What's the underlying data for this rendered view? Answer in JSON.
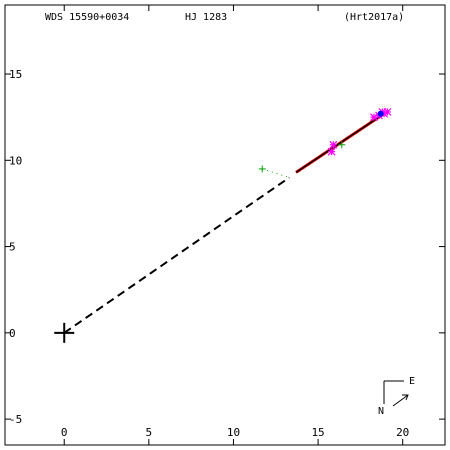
{
  "header": {
    "wds_id": "WDS 15590+0034",
    "discoverer": "HJ 1283",
    "orbit_ref": "(Hrt2017a)"
  },
  "compass": {
    "east_label": "E",
    "north_label": "N"
  },
  "colors": {
    "axes": "#000000",
    "orbit": "#000000",
    "residual": "#ff0000",
    "obs_green": "#00a000",
    "obs_magenta": "#ff00ff",
    "obs_blue": "#0000ff"
  },
  "chart_data": {
    "type": "scatter",
    "title": "",
    "xlabel": "",
    "ylabel": "",
    "xlim": [
      -3.5,
      22.5
    ],
    "ylim": [
      -6.5,
      19.0
    ],
    "xticks": [
      0,
      5,
      10,
      15,
      20
    ],
    "yticks": [
      -5,
      0,
      5,
      10,
      15
    ],
    "xtick_labels": [
      "0",
      "5",
      "10",
      "15",
      "20"
    ],
    "ytick_labels": [
      "-5",
      "0",
      "5",
      "10",
      "15"
    ],
    "grid": false,
    "primary_star": {
      "x": 0,
      "y": 0
    },
    "orbit_line": {
      "x": [
        13.7,
        18.9
      ],
      "y": [
        9.3,
        12.7
      ]
    },
    "extrapolated_line": {
      "x": [
        0,
        13.3
      ],
      "y": [
        0,
        9.0
      ]
    },
    "series": [
      {
        "marker": "plus",
        "color": "green",
        "x": [
          11.7,
          16.4
        ],
        "y": [
          9.5,
          10.9
        ]
      },
      {
        "marker": "asterisk",
        "color": "magenta",
        "x": [
          15.8,
          15.9,
          18.3,
          18.6,
          18.8,
          18.9,
          19.1
        ],
        "y": [
          10.5,
          10.9,
          12.5,
          12.6,
          12.8,
          12.7,
          12.8
        ]
      },
      {
        "marker": "dot",
        "color": "blue",
        "x": [
          18.7
        ],
        "y": [
          12.7
        ]
      }
    ]
  }
}
